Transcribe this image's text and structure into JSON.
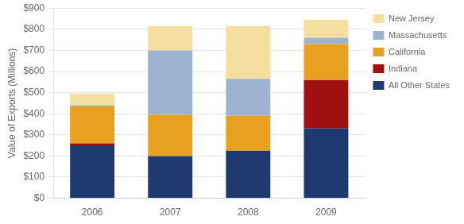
{
  "chart_data": {
    "type": "bar",
    "stacked": true,
    "categories": [
      "2006",
      "2007",
      "2008",
      "2009"
    ],
    "series": [
      {
        "name": "All Other States",
        "color": "#1F3A6E",
        "values": [
          250,
          200,
          225,
          330
        ]
      },
      {
        "name": "Indiana",
        "color": "#A01010",
        "values": [
          10,
          0,
          0,
          230
        ]
      },
      {
        "name": "California",
        "color": "#E8A020",
        "values": [
          175,
          195,
          165,
          170
        ]
      },
      {
        "name": "Massachusetts",
        "color": "#9EB3CF",
        "values": [
          5,
          305,
          175,
          30
        ]
      },
      {
        "name": "New Jersey",
        "color": "#F5DFA0",
        "values": [
          55,
          115,
          250,
          85
        ]
      }
    ],
    "ylabel": "Value of Exports (Millions)",
    "ylim": [
      0,
      900
    ],
    "yticks": [
      {
        "value": 0,
        "label": "$0"
      },
      {
        "value": 100,
        "label": "$100"
      },
      {
        "value": 200,
        "label": "$200"
      },
      {
        "value": 300,
        "label": "$300"
      },
      {
        "value": 400,
        "label": "$400"
      },
      {
        "value": 500,
        "label": "$500"
      },
      {
        "value": 600,
        "label": "$600"
      },
      {
        "value": 700,
        "label": "$700"
      },
      {
        "value": 800,
        "label": "$800"
      },
      {
        "value": 900,
        "label": "$900"
      }
    ],
    "grid": true,
    "legend": "right"
  }
}
